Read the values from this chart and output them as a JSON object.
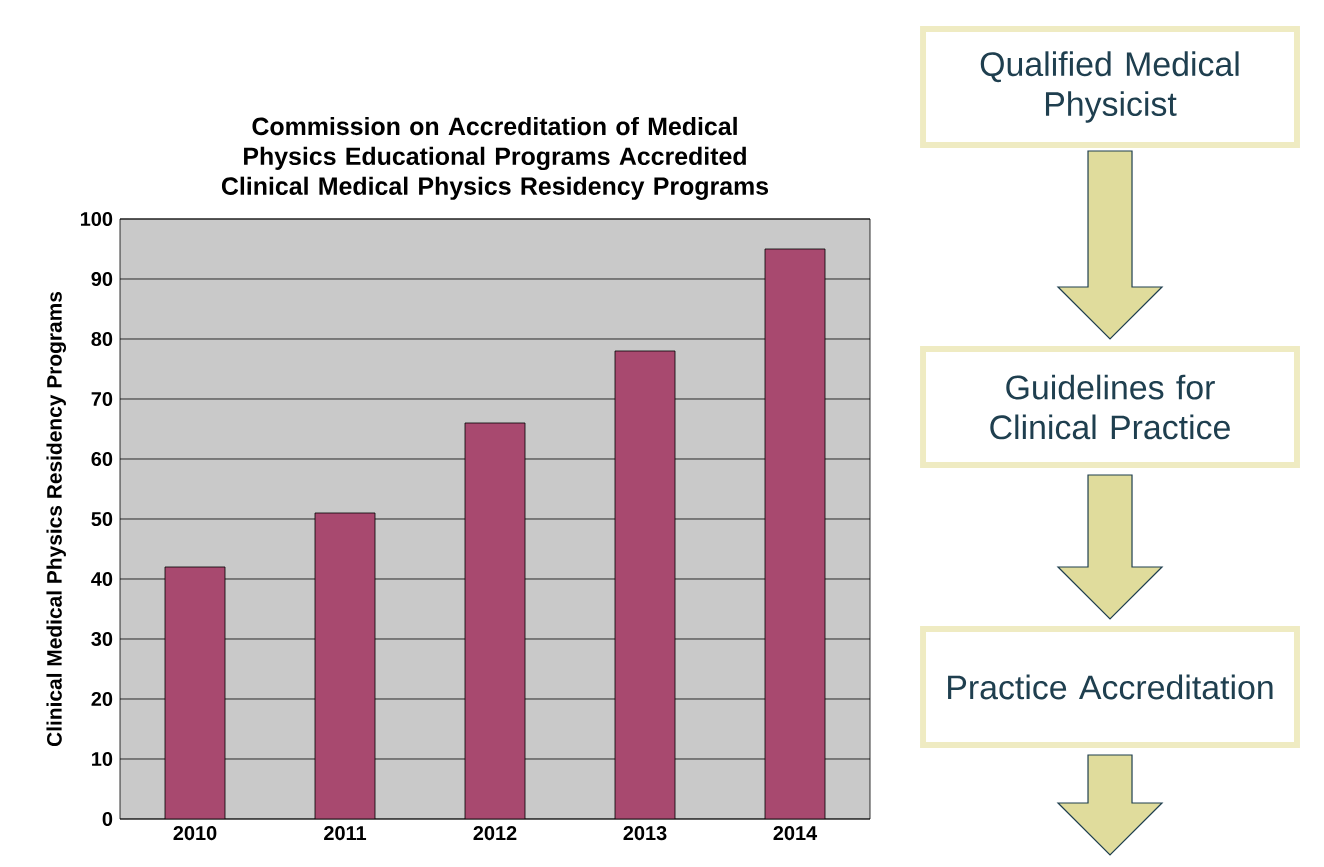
{
  "chart_data": {
    "type": "bar",
    "title": "Commission on Accreditation of Medical Physics Educational Programs Accredited Clinical Medical Physics Residency Programs",
    "ylabel": "Clinical Medical Physics Residency Programs",
    "categories": [
      "2010",
      "2011",
      "2012",
      "2013",
      "2014"
    ],
    "values": [
      42,
      51,
      66,
      78,
      95
    ],
    "color": "#a8496f",
    "ylim": [
      0,
      100
    ],
    "yticks": [
      0,
      10,
      20,
      30,
      40,
      50,
      60,
      70,
      80,
      90,
      100
    ],
    "grid": "y",
    "annotations": [
      "Qualified Medical Physicist",
      "Guidelines for Clinical Practice",
      "Practice Accreditation"
    ]
  }
}
